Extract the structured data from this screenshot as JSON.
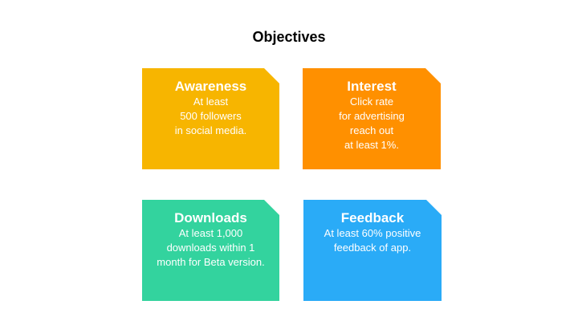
{
  "slide": {
    "title": "Objectives"
  },
  "cards": [
    {
      "title": "Awareness",
      "lines": [
        "At least",
        "500 followers",
        "in social media."
      ],
      "color": "#F7B500"
    },
    {
      "title": "Interest",
      "lines": [
        "Click rate",
        "for advertising",
        "reach out",
        "at least 1%."
      ],
      "color": "#FF9000"
    },
    {
      "title": "Downloads",
      "lines": [
        "At least 1,000",
        "downloads within 1",
        "month for Beta version."
      ],
      "color": "#33D39E"
    },
    {
      "title": "Feedback",
      "lines": [
        "At least 60% positive",
        "feedback of app."
      ],
      "color": "#2AABF7"
    }
  ]
}
